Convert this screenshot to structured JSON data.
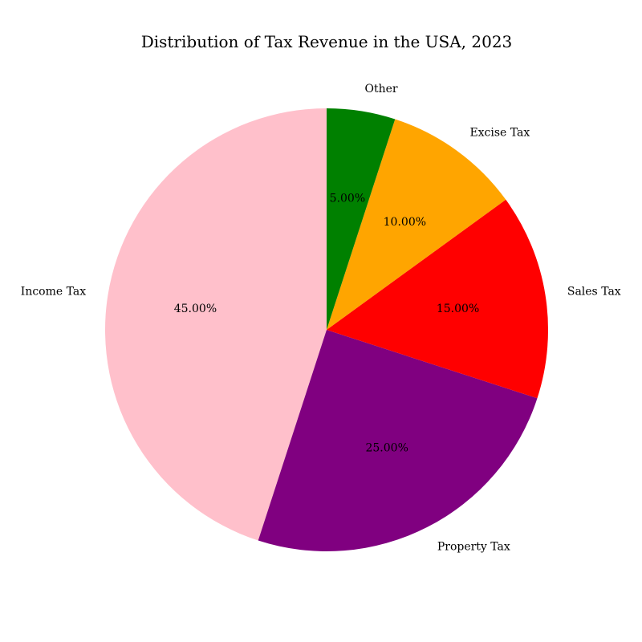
{
  "chart_data": {
    "type": "pie",
    "title": "Distribution of Tax Revenue in the USA, 2023",
    "categories": [
      "Income Tax",
      "Property Tax",
      "Sales Tax",
      "Excise Tax",
      "Other"
    ],
    "values": [
      45,
      25,
      15,
      10,
      5
    ],
    "value_labels": [
      "45.00%",
      "25.00%",
      "15.00%",
      "10.00%",
      "5.00%"
    ],
    "colors": [
      "#ffc0cb",
      "#800080",
      "#ff0000",
      "#ffa500",
      "#008000"
    ],
    "start_angle_deg": 90,
    "direction": "counterclockwise",
    "legend": "none"
  }
}
